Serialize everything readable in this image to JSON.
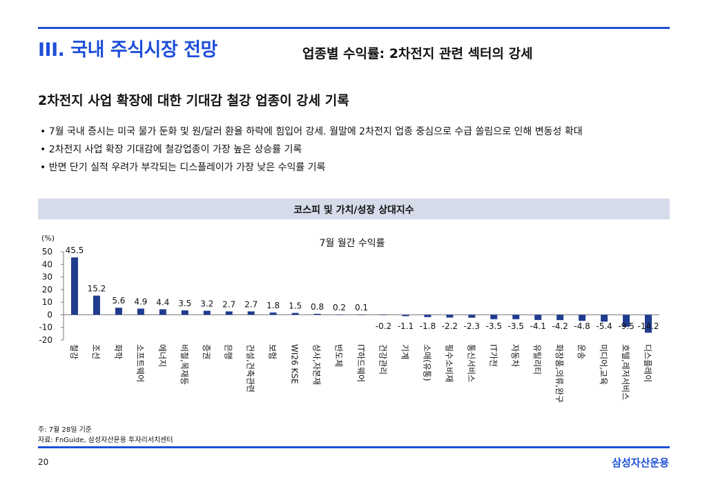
{
  "header": {
    "section_title": "III. 국내 주식시장 전망",
    "subtitle": "업종별 수익률: 2차전지 관련 섹터의 강세"
  },
  "headline": "2차전지 사업 확장에 대한 기대감 철강 업종이 강세 기록",
  "bullets": [
    "7월 국내 증시는 미국 물가 둔화 및 원/달러 환율 하락에 힘입어 강세. 월말에 2차전지 업종 중심으로 수급 쏠림으로 인해 변동성 확대",
    "2차전지 사업 확장 기대감에 철강업종이 가장 높은 상승률 기록",
    "반면 단기 실적 우려가 부각되는 디스플레이가 가장 낮은 수익률 기록"
  ],
  "panel_title": "코스피 및 가치/성장 상대지수",
  "chart_data": {
    "type": "bar",
    "title": "7월 월간 수익률",
    "ylabel": "(%)",
    "ylim": [
      -20,
      50
    ],
    "yticks": [
      -20,
      -10,
      0,
      10,
      20,
      30,
      40,
      50
    ],
    "grid": false,
    "legend": "none",
    "bar_color": "#1f3c8f",
    "categories": [
      "철강",
      "조선",
      "화학",
      "소프트웨어",
      "에너지",
      "비철,목재등",
      "증권",
      "은행",
      "건설,건축관련",
      "보험",
      "WI26 KSE",
      "상사,자본재",
      "반도체",
      "IT하드웨어",
      "건강관리",
      "기계",
      "소매(유통)",
      "필수소비재",
      "통신서비스",
      "IT가전",
      "자동차",
      "유틸리티",
      "화장품,의류,완구",
      "운송",
      "미디어,교육",
      "호텔,레저서비스",
      "디스플레이"
    ],
    "values": [
      45.5,
      15.2,
      5.6,
      4.9,
      4.4,
      3.5,
      3.2,
      2.7,
      2.7,
      1.8,
      1.5,
      0.8,
      0.2,
      0.1,
      -0.2,
      -1.1,
      -1.8,
      -2.2,
      -2.3,
      -3.5,
      -3.5,
      -4.1,
      -4.2,
      -4.8,
      -5.4,
      -9.5,
      -14.2
    ]
  },
  "footnotes": {
    "note": "주: 7월 28일 기준",
    "source": "자료: FnGuide, 삼성자산운용 투자리서치센터"
  },
  "page_number": "20",
  "brand": "삼성자산운용"
}
